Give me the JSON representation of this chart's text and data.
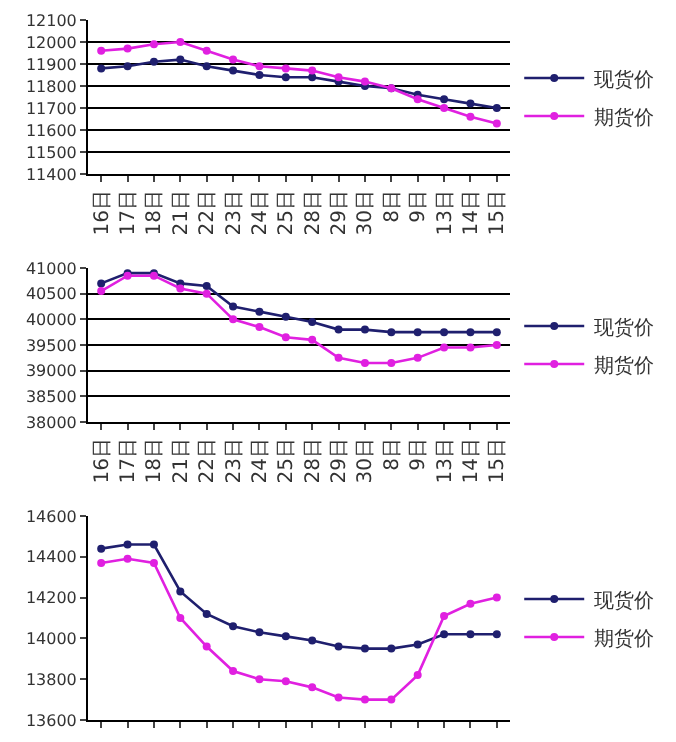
{
  "chart_data": [
    {
      "type": "line",
      "categories": [
        "16日",
        "17日",
        "18日",
        "21日",
        "22日",
        "23日",
        "24日",
        "25日",
        "28日",
        "29日",
        "30日",
        "8日",
        "9日",
        "13日",
        "14日",
        "15日"
      ],
      "series": [
        {
          "name": "现货价",
          "color": "#1f1f6e",
          "values": [
            11880,
            11890,
            11910,
            11920,
            11890,
            11870,
            11850,
            11840,
            11840,
            11820,
            11800,
            11790,
            11760,
            11740,
            11720,
            11700
          ]
        },
        {
          "name": "期货价",
          "color": "#e020e0",
          "values": [
            11960,
            11970,
            11990,
            12000,
            11960,
            11920,
            11890,
            11880,
            11870,
            11840,
            11820,
            11790,
            11740,
            11700,
            11660,
            11630
          ]
        }
      ],
      "ylim": [
        11400,
        12100
      ],
      "yticks": [
        11400,
        11500,
        11600,
        11700,
        11800,
        11900,
        12000,
        12100
      ],
      "grid": "y",
      "legend": "right",
      "marker": "circle",
      "line_style": "solid"
    },
    {
      "type": "line",
      "categories": [
        "16日",
        "17日",
        "18日",
        "21日",
        "22日",
        "23日",
        "24日",
        "25日",
        "28日",
        "29日",
        "30日",
        "8日",
        "9日",
        "13日",
        "14日",
        "15日"
      ],
      "series": [
        {
          "name": "现货价",
          "color": "#1f1f6e",
          "values": [
            40700,
            40900,
            40900,
            40700,
            40650,
            40250,
            40150,
            40050,
            39950,
            39800,
            39800,
            39750,
            39750,
            39750,
            39750,
            39750
          ]
        },
        {
          "name": "期货价",
          "color": "#e020e0",
          "values": [
            40550,
            40850,
            40850,
            40600,
            40500,
            40000,
            39850,
            39650,
            39600,
            39250,
            39150,
            39150,
            39250,
            39450,
            39450,
            39500
          ]
        }
      ],
      "ylim": [
        38000,
        41000
      ],
      "yticks": [
        38000,
        38500,
        39000,
        39500,
        40000,
        40500,
        41000
      ],
      "grid": "y",
      "legend": "right",
      "marker": "circle",
      "line_style": "solid"
    },
    {
      "type": "line",
      "categories": [
        null,
        null,
        null,
        null,
        null,
        null,
        null,
        null,
        null,
        null,
        null,
        null,
        null,
        null,
        null,
        null
      ],
      "series": [
        {
          "name": "现货价",
          "color": "#1f1f6e",
          "values": [
            14440,
            14460,
            14460,
            14230,
            14120,
            14060,
            14030,
            14010,
            13990,
            13960,
            13950,
            13950,
            13970,
            14020,
            14020,
            14020
          ]
        },
        {
          "name": "期货价",
          "color": "#e020e0",
          "values": [
            14370,
            14390,
            14370,
            14100,
            13960,
            13840,
            13800,
            13790,
            13760,
            13710,
            13700,
            13700,
            13820,
            14110,
            14170,
            14200
          ]
        }
      ],
      "ylim": [
        13600,
        14600
      ],
      "yticks": [
        13600,
        13800,
        14000,
        14200,
        14400,
        14600
      ],
      "tick_labels": "y",
      "legend": "right",
      "marker": "circle",
      "line_style": "solid"
    }
  ]
}
